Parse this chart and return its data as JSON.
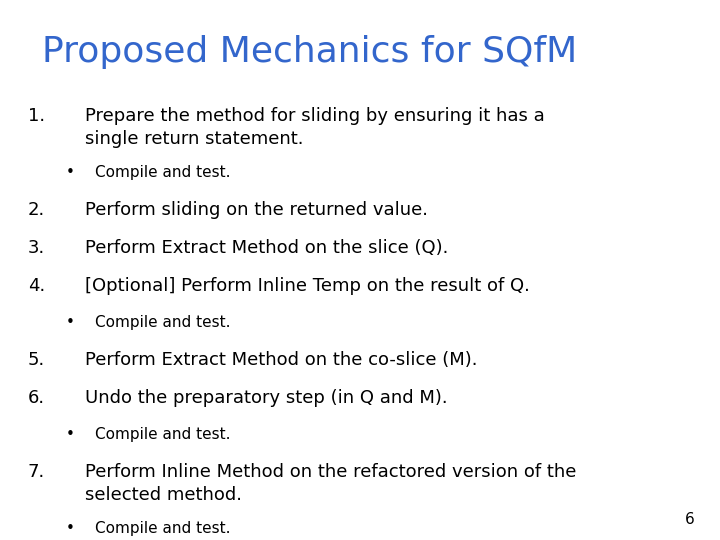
{
  "title": "Proposed Mechanics for SQfM",
  "title_color": "#3366CC",
  "title_fontsize": 26,
  "background_color": "#FFFFFF",
  "text_color": "#000000",
  "body_fontsize": 13,
  "bullet_fontsize": 11,
  "items": [
    {
      "type": "numbered",
      "num": "1.",
      "text": "Prepare the method for sliding by ensuring it has a\nsingle return statement."
    },
    {
      "type": "bullet",
      "text": "Compile and test."
    },
    {
      "type": "numbered",
      "num": "2.",
      "text": "Perform sliding on the returned value."
    },
    {
      "type": "numbered",
      "num": "3.",
      "text": "Perform Extract Method on the slice (Q)."
    },
    {
      "type": "numbered",
      "num": "4.",
      "text": "[Optional] Perform Inline Temp on the result of Q."
    },
    {
      "type": "bullet",
      "text": "Compile and test."
    },
    {
      "type": "numbered",
      "num": "5.",
      "text": "Perform Extract Method on the co-slice (M)."
    },
    {
      "type": "numbered",
      "num": "6.",
      "text": "Undo the preparatory step (in Q and M)."
    },
    {
      "type": "bullet",
      "text": "Compile and test."
    },
    {
      "type": "numbered",
      "num": "7.",
      "text": "Perform Inline Method on the refactored version of the\nselected method."
    },
    {
      "type": "bullet",
      "text": "Compile and test."
    }
  ],
  "page_num": "6",
  "page_num_fontsize": 11
}
